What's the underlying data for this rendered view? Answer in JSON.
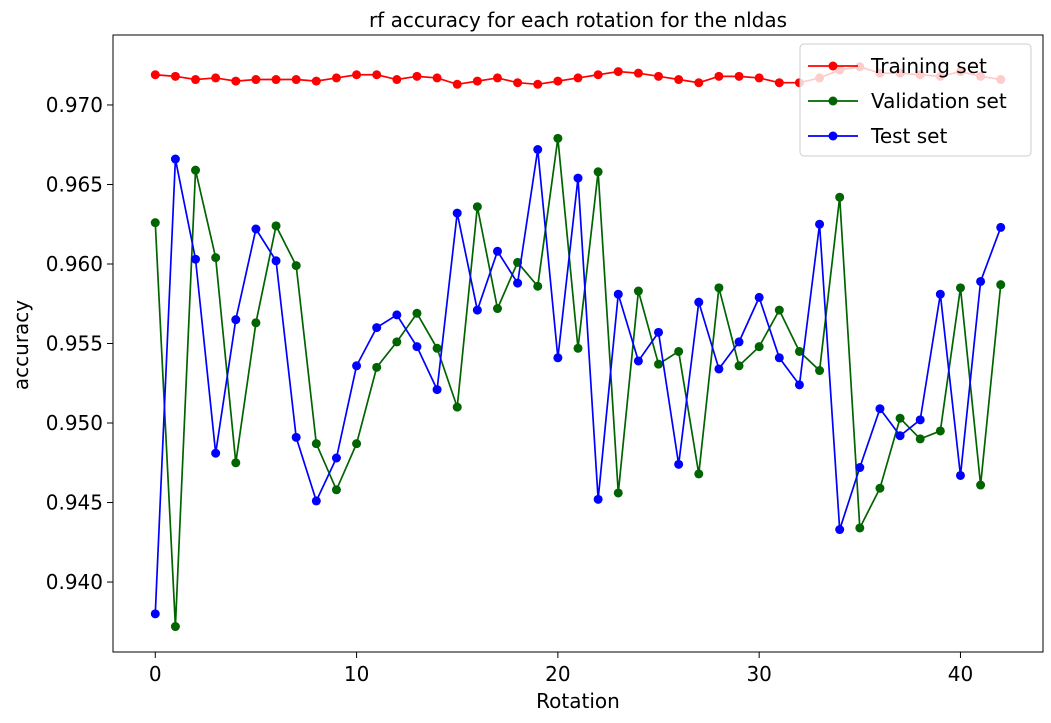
{
  "chart_data": {
    "type": "line",
    "title": "rf accuracy for each rotation for the nldas",
    "xlabel": "Rotation",
    "ylabel": "accuracy",
    "xlim": [
      -2.1,
      44.1
    ],
    "ylim": [
      0.9356,
      0.9744
    ],
    "xticks": [
      0,
      10,
      20,
      30,
      40
    ],
    "yticks": [
      0.94,
      0.945,
      0.95,
      0.955,
      0.96,
      0.965,
      0.97
    ],
    "ytick_labels": [
      "0.940",
      "0.945",
      "0.950",
      "0.955",
      "0.960",
      "0.965",
      "0.970"
    ],
    "legend_position": "upper right",
    "grid": false,
    "x": [
      0,
      1,
      2,
      3,
      4,
      5,
      6,
      7,
      8,
      9,
      10,
      11,
      12,
      13,
      14,
      15,
      16,
      17,
      18,
      19,
      20,
      21,
      22,
      23,
      24,
      25,
      26,
      27,
      28,
      29,
      30,
      31,
      32,
      33,
      34,
      35,
      36,
      37,
      38,
      39,
      40,
      41,
      42
    ],
    "series": [
      {
        "name": "Training set",
        "color": "#ff0000",
        "marker": "circle",
        "values": [
          0.9719,
          0.9718,
          0.9716,
          0.9717,
          0.9715,
          0.9716,
          0.9716,
          0.9716,
          0.9715,
          0.9717,
          0.9719,
          0.9719,
          0.9716,
          0.9718,
          0.9717,
          0.9713,
          0.9715,
          0.9717,
          0.9714,
          0.9713,
          0.9715,
          0.9717,
          0.9719,
          0.9721,
          0.972,
          0.9718,
          0.9716,
          0.9714,
          0.9718,
          0.9718,
          0.9717,
          0.9714,
          0.9714,
          0.9717,
          0.9722,
          0.9724,
          0.972,
          0.972,
          0.9719,
          0.9718,
          0.9721,
          0.9718,
          0.9716
        ]
      },
      {
        "name": "Validation set",
        "color": "#006400",
        "marker": "circle",
        "values": [
          0.9626,
          0.9372,
          0.9659,
          0.9604,
          0.9475,
          0.9563,
          0.9624,
          0.9599,
          0.9487,
          0.9458,
          0.9487,
          0.9535,
          0.9551,
          0.9569,
          0.9547,
          0.951,
          0.9636,
          0.9572,
          0.9601,
          0.9586,
          0.9679,
          0.9547,
          0.9658,
          0.9456,
          0.9583,
          0.9537,
          0.9545,
          0.9468,
          0.9585,
          0.9536,
          0.9548,
          0.9571,
          0.9545,
          0.9533,
          0.9642,
          0.9434,
          0.9459,
          0.9503,
          0.949,
          0.9495,
          0.9585,
          0.9461,
          0.9587
        ]
      },
      {
        "name": "Test set",
        "color": "#0000ff",
        "marker": "circle",
        "values": [
          0.938,
          0.9666,
          0.9603,
          0.9481,
          0.9565,
          0.9622,
          0.9602,
          0.9491,
          0.9451,
          0.9478,
          0.9536,
          0.956,
          0.9568,
          0.9548,
          0.9521,
          0.9632,
          0.9571,
          0.9608,
          0.9588,
          0.9672,
          0.9541,
          0.9654,
          0.9452,
          0.9581,
          0.9539,
          0.9557,
          0.9474,
          0.9576,
          0.9534,
          0.9551,
          0.9579,
          0.9541,
          0.9524,
          0.9625,
          0.9433,
          0.9472,
          0.9509,
          0.9492,
          0.9502,
          0.9581,
          0.9467,
          0.9589,
          0.9623
        ]
      }
    ]
  }
}
